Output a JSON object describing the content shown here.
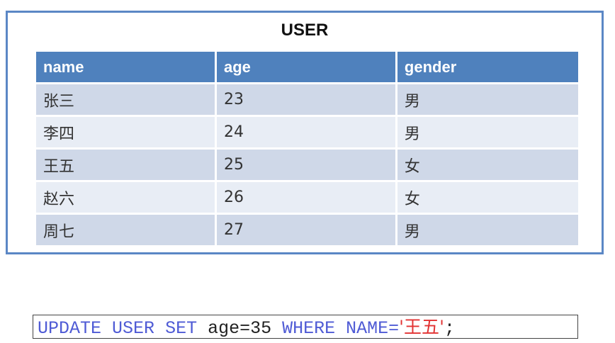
{
  "table": {
    "title": "USER",
    "columns": [
      "name",
      "age",
      "gender"
    ],
    "rows": [
      {
        "name": "张三",
        "age": "23",
        "gender": "男"
      },
      {
        "name": "李四",
        "age": "24",
        "gender": "男"
      },
      {
        "name": "王五",
        "age": "25",
        "gender": "女"
      },
      {
        "name": "赵六",
        "age": "26",
        "gender": "女"
      },
      {
        "name": "周七",
        "age": "27",
        "gender": "男"
      }
    ]
  },
  "sql": {
    "update_kw": "UPDATE",
    "table_name": "USER",
    "set_kw": "SET",
    "assignment": "age=35",
    "where_kw": "WHERE",
    "condition_field": "NAME=",
    "quote_open": "'",
    "condition_value": "王五",
    "quote_close": "'",
    "terminator": ";"
  },
  "colors": {
    "header_bg": "#4f81bd",
    "frame_border": "#5b87c5",
    "row_odd": "#cfd8e8",
    "row_even": "#e8edf5",
    "sql_keyword": "#4f5bd5",
    "sql_string": "#e23232"
  }
}
